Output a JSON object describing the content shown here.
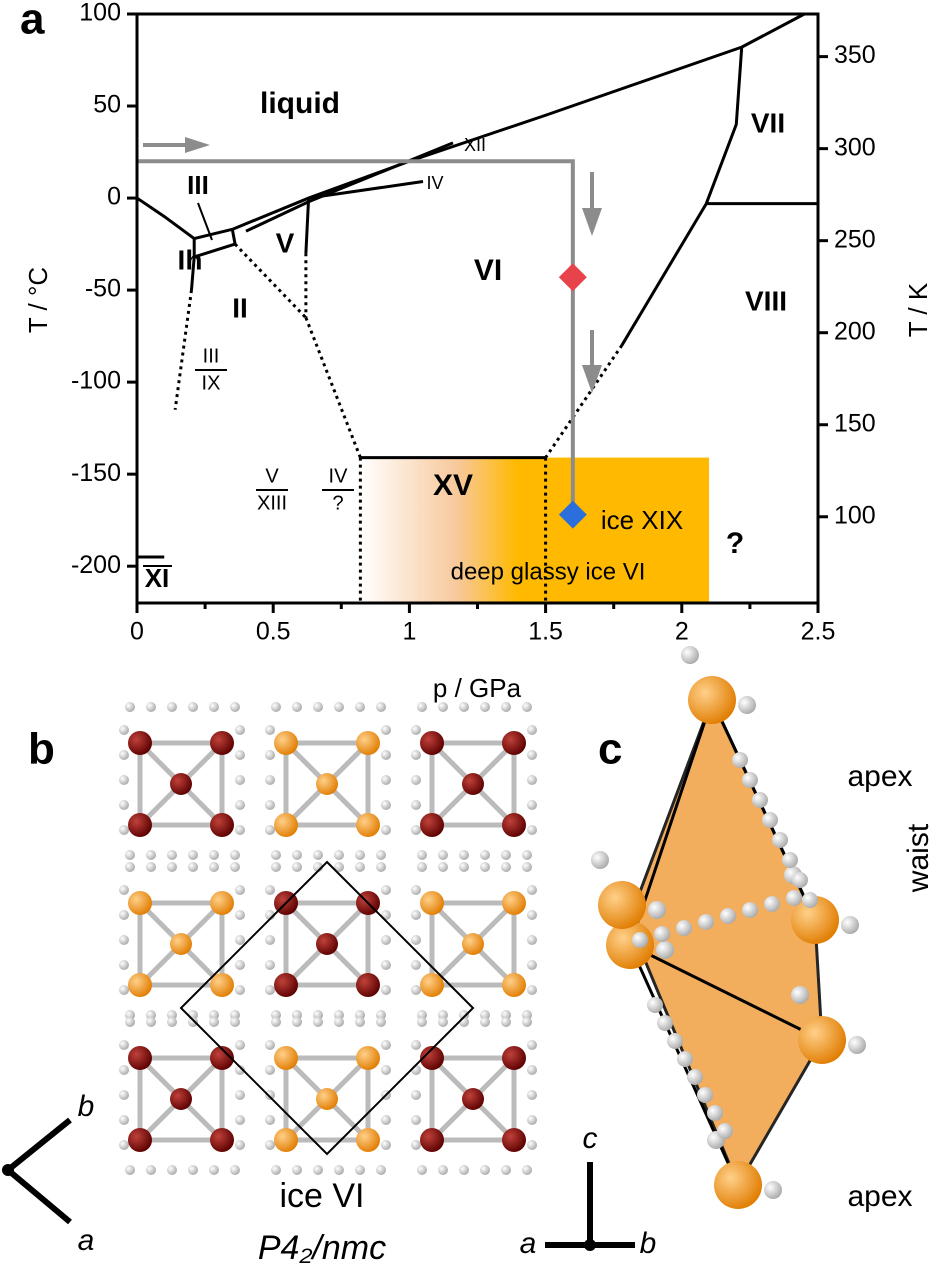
{
  "panel_labels": [
    "a",
    "b",
    "c"
  ],
  "chart_data": {
    "type": "phase-diagram",
    "x_label": "p / GPa",
    "y_label": "T / °C",
    "y2_label": "T / K",
    "xlim": [
      0,
      2.5
    ],
    "ylim": [
      -220,
      100
    ],
    "y2lim": [
      53.15,
      373.15
    ],
    "xticks": [
      0,
      0.5,
      1,
      1.5,
      2,
      2.5
    ],
    "yticks": [
      100,
      50,
      0,
      -50,
      -100,
      -150,
      -200
    ],
    "y2ticks": [
      100,
      150,
      200,
      250,
      300,
      350
    ],
    "boundaries": [
      {
        "style": "solid",
        "x": [
          0,
          0.1,
          0.21
        ],
        "y": [
          0,
          -10,
          -22
        ]
      },
      {
        "style": "solid",
        "x": [
          0.21,
          0.21,
          0.2
        ],
        "y": [
          -22,
          -32,
          -50
        ]
      },
      {
        "style": "dotted",
        "x": [
          0.2,
          0.14
        ],
        "y": [
          -50,
          -115
        ]
      },
      {
        "style": "solid",
        "x": [
          0.21,
          0.35
        ],
        "y": [
          -22,
          -17
        ]
      },
      {
        "style": "solid",
        "x": [
          0.21,
          0.36
        ],
        "y": [
          -32,
          -25
        ]
      },
      {
        "style": "solid",
        "x": [
          0.35,
          0.36
        ],
        "y": [
          -17,
          -25
        ]
      },
      {
        "style": "solid",
        "x": [
          0.35,
          0.63,
          1,
          1.5,
          2.22
        ],
        "y": [
          -17,
          0,
          20,
          45,
          82
        ]
      },
      {
        "style": "solid",
        "x": [
          2.22,
          2.45
        ],
        "y": [
          82,
          100
        ]
      },
      {
        "style": "solid",
        "x": [
          2.22,
          2.2,
          2.09
        ],
        "y": [
          82,
          40,
          -3
        ]
      },
      {
        "style": "solid",
        "x": [
          2.09,
          2.5
        ],
        "y": [
          -3,
          -3
        ]
      },
      {
        "style": "solid",
        "x": [
          2.09,
          1.78
        ],
        "y": [
          -3,
          -80
        ]
      },
      {
        "style": "dotted",
        "x": [
          1.78,
          1.5
        ],
        "y": [
          -80,
          -141
        ]
      },
      {
        "style": "solid",
        "x": [
          0.63,
          0.62
        ],
        "y": [
          0,
          -30
        ]
      },
      {
        "style": "dotted",
        "x": [
          0.62,
          0.62
        ],
        "y": [
          -30,
          -65
        ]
      },
      {
        "style": "dotted",
        "x": [
          0.36,
          0.62
        ],
        "y": [
          -25,
          -65
        ]
      },
      {
        "style": "dotted",
        "x": [
          0.62,
          0.82
        ],
        "y": [
          -65,
          -141
        ]
      },
      {
        "style": "solid",
        "x": [
          0.4,
          0.63,
          1.16
        ],
        "y": [
          -18,
          -2,
          30
        ]
      },
      {
        "style": "solid",
        "x": [
          0.63,
          1.05
        ],
        "y": [
          0,
          9
        ]
      },
      {
        "style": "solid",
        "x": [
          0.82,
          1.5
        ],
        "y": [
          -141,
          -141
        ]
      },
      {
        "style": "dotted",
        "x": [
          0.82,
          0.82
        ],
        "y": [
          -141,
          -220
        ]
      },
      {
        "style": "dotted",
        "x": [
          1.5,
          1.5
        ],
        "y": [
          -141,
          -220
        ]
      },
      {
        "style": "solid",
        "x": [
          0,
          0.1
        ],
        "y": [
          -195,
          -195
        ]
      }
    ],
    "region": {
      "x": [
        0.82,
        2.1
      ],
      "y": [
        -141,
        -220
      ],
      "color": "#ffba00"
    },
    "path": {
      "x": [
        0,
        1.6,
        1.6
      ],
      "y": [
        20,
        20,
        -172
      ],
      "color": "#8c8c8c"
    },
    "markers": [
      {
        "x": 1.6,
        "y": -43,
        "color": "#e8434b"
      },
      {
        "x": 1.6,
        "y": -172,
        "color": "#2a6fdb"
      }
    ],
    "phase_labels": [
      "liquid",
      "III",
      "Ih",
      "V",
      "II",
      "VI",
      "VII",
      "VIII",
      "XII",
      "IV",
      "XV",
      "ice XIX",
      "deep glassy ice VI",
      "?",
      "XI"
    ],
    "fractions": [
      {
        "num": "III",
        "den": "IX"
      },
      {
        "num": "V",
        "den": "XIII"
      },
      {
        "num": "IV",
        "den": "?"
      }
    ]
  },
  "panel_b": {
    "title": "ice VI",
    "space_group": "P4₂/nmc",
    "axes": [
      "b",
      "a"
    ]
  },
  "panel_c": {
    "labels": [
      "apex",
      "waist",
      "apex"
    ],
    "axes": [
      "c",
      "a",
      "b"
    ]
  }
}
